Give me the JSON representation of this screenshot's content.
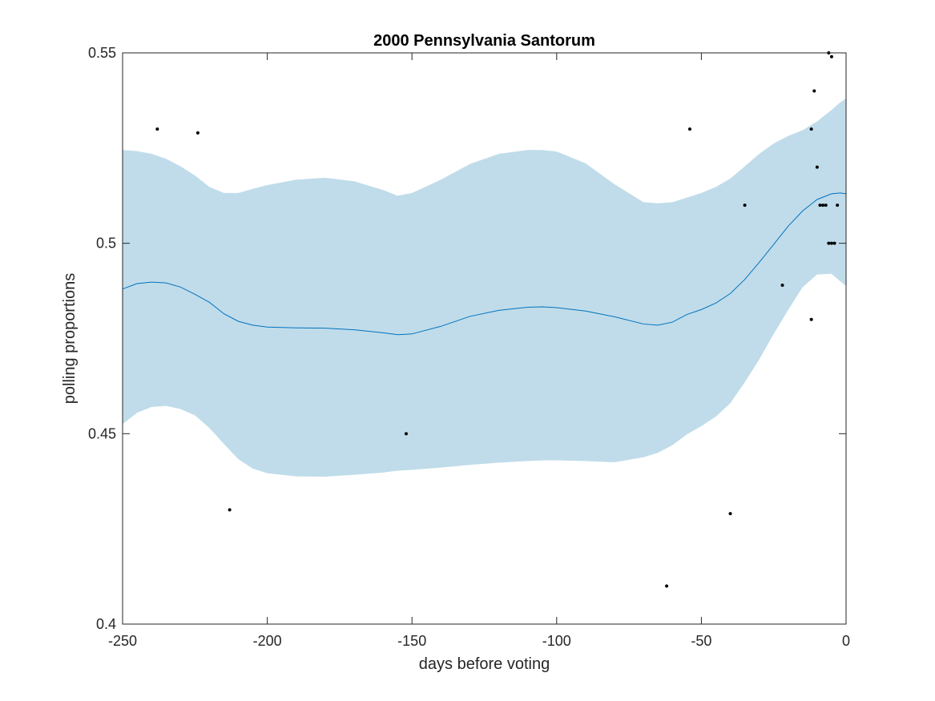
{
  "chart_data": {
    "type": "scatter",
    "title": "2000 Pennsylvania Santorum",
    "xlabel": "days before voting",
    "ylabel": "polling proportions",
    "xlim": [
      -250,
      0
    ],
    "ylim": [
      0.4,
      0.55
    ],
    "x_ticks": [
      -250,
      -200,
      -150,
      -100,
      -50,
      0
    ],
    "x_tick_labels": [
      "-250",
      "-200",
      "-150",
      "-100",
      "-50",
      "0"
    ],
    "y_ticks": [
      0.4,
      0.45,
      0.5,
      0.55
    ],
    "y_tick_labels": [
      "0.4",
      "0.45",
      "0.5",
      "0.55"
    ],
    "grid": false,
    "colors": {
      "band": "#c0dcea",
      "line": "#0072bd",
      "points": "#000000",
      "axes": "#262626"
    },
    "series": [
      {
        "kind": "points",
        "x": [
          -238,
          -224,
          -213,
          -152,
          -62,
          -54,
          -40,
          -35,
          -22,
          -12,
          -12,
          -11,
          -10,
          -9,
          -8,
          -7,
          -6,
          -6,
          -5,
          -5,
          -4,
          -3
        ],
        "y": [
          0.53,
          0.529,
          0.43,
          0.45,
          0.41,
          0.53,
          0.429,
          0.51,
          0.489,
          0.53,
          0.48,
          0.54,
          0.52,
          0.51,
          0.51,
          0.51,
          0.55,
          0.5,
          0.5,
          0.549,
          0.5,
          0.51
        ]
      },
      {
        "kind": "fit",
        "x": [
          -250,
          -245,
          -240,
          -235,
          -230,
          -225,
          -220,
          -215,
          -210,
          -205,
          -200,
          -190,
          -180,
          -170,
          -160,
          -155,
          -150,
          -140,
          -130,
          -120,
          -110,
          -105,
          -100,
          -90,
          -80,
          -70,
          -65,
          -60,
          -55,
          -50,
          -45,
          -40,
          -35,
          -30,
          -25,
          -20,
          -15,
          -10,
          -5,
          -2,
          0
        ],
        "y": [
          0.488,
          0.4894,
          0.4898,
          0.4896,
          0.4885,
          0.4866,
          0.4845,
          0.4815,
          0.4795,
          0.4785,
          0.478,
          0.4778,
          0.4777,
          0.4773,
          0.4765,
          0.476,
          0.4762,
          0.4782,
          0.4808,
          0.4824,
          0.4832,
          0.4833,
          0.4831,
          0.4822,
          0.4807,
          0.4788,
          0.4785,
          0.4793,
          0.4813,
          0.4826,
          0.4843,
          0.4868,
          0.4905,
          0.495,
          0.4997,
          0.5045,
          0.5085,
          0.5115,
          0.513,
          0.5132,
          0.513
        ]
      },
      {
        "kind": "band",
        "x": [
          -250,
          -245,
          -240,
          -235,
          -230,
          -225,
          -220,
          -215,
          -210,
          -205,
          -200,
          -190,
          -180,
          -170,
          -160,
          -155,
          -150,
          -140,
          -130,
          -120,
          -110,
          -105,
          -100,
          -90,
          -80,
          -70,
          -65,
          -60,
          -55,
          -50,
          -45,
          -40,
          -35,
          -30,
          -25,
          -20,
          -15,
          -10,
          -5,
          -2,
          0
        ],
        "upper": [
          0.5245,
          0.5242,
          0.5235,
          0.5222,
          0.5202,
          0.5178,
          0.5148,
          0.5132,
          0.5132,
          0.5143,
          0.5153,
          0.5167,
          0.5172,
          0.5163,
          0.514,
          0.5125,
          0.5132,
          0.5167,
          0.5208,
          0.5235,
          0.5245,
          0.5245,
          0.5241,
          0.521,
          0.5155,
          0.5108,
          0.5105,
          0.5108,
          0.512,
          0.5132,
          0.5148,
          0.517,
          0.5202,
          0.5235,
          0.5262,
          0.5282,
          0.5297,
          0.532,
          0.535,
          0.537,
          0.538
        ],
        "lower": [
          0.4525,
          0.4555,
          0.457,
          0.4573,
          0.4565,
          0.4548,
          0.4515,
          0.4473,
          0.4433,
          0.4408,
          0.4396,
          0.4388,
          0.4387,
          0.4392,
          0.4398,
          0.4403,
          0.4405,
          0.4411,
          0.4418,
          0.4424,
          0.4428,
          0.443,
          0.443,
          0.4428,
          0.4425,
          0.4438,
          0.445,
          0.447,
          0.4498,
          0.452,
          0.4545,
          0.458,
          0.4635,
          0.4695,
          0.4762,
          0.4825,
          0.4885,
          0.4918,
          0.492,
          0.49,
          0.4888
        ]
      }
    ]
  }
}
